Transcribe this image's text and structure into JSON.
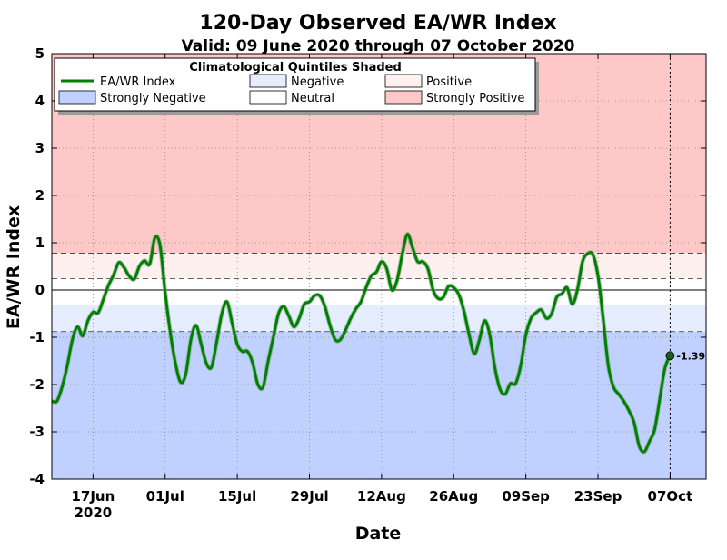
{
  "chart_data": {
    "type": "line",
    "title": "120-Day Observed EA/WR Index",
    "subtitle": "Valid: 09 June 2020 through 07 October 2020",
    "xlabel": "Date",
    "ylabel": "EA/WR Index",
    "ylim": [
      -4,
      5
    ],
    "yticks": [
      -4,
      -3,
      -2,
      -1,
      0,
      1,
      2,
      3,
      4,
      5
    ],
    "ytick_labels": [
      "-4",
      "-3",
      "-2",
      "-1",
      "0",
      "1",
      "2",
      "3",
      "4",
      "5"
    ],
    "xtick_dates": [
      "2020-06-17",
      "2020-07-01",
      "2020-07-15",
      "2020-07-29",
      "2020-08-12",
      "2020-08-26",
      "2020-09-09",
      "2020-09-23",
      "2020-10-07"
    ],
    "xtick_labels": [
      "17Jun",
      "01Jul",
      "15Jul",
      "29Jul",
      "12Aug",
      "26Aug",
      "09Sep",
      "23Sep",
      "07Oct"
    ],
    "xtick_sublabel": "2020",
    "grid": true,
    "quintile_thresholds": {
      "strong_negative_upper": -0.88,
      "negative_upper": -0.32,
      "positive_lower": 0.24,
      "strong_positive_lower": 0.78
    },
    "legend": {
      "title": "Climatological Quintiles Shaded",
      "placement": "top-left",
      "entries": [
        {
          "label": "EA/WR Index",
          "kind": "line",
          "color": "#008000"
        },
        {
          "label": "Negative",
          "kind": "patch",
          "color": "#e5edff"
        },
        {
          "label": "Positive",
          "kind": "patch",
          "color": "#fff0f0"
        },
        {
          "label": "Strongly Negative",
          "kind": "patch",
          "color": "#c0d1ff"
        },
        {
          "label": "Neutral",
          "kind": "patch",
          "color": "#ffffff"
        },
        {
          "label": "Strongly Positive",
          "kind": "patch",
          "color": "#ffc8c8"
        }
      ]
    },
    "colors": {
      "line": "#008000",
      "strong_negative": "#c0d1ff",
      "negative": "#e5edff",
      "neutral": "#ffffff",
      "positive": "#fff0f0",
      "strong_positive": "#ffc8c8"
    },
    "last_value_label": "-1.39",
    "series": [
      {
        "name": "EA/WR Index",
        "points": [
          [
            "2020-06-09",
            -2.35
          ],
          [
            "2020-06-10",
            -2.35
          ],
          [
            "2020-06-11",
            -2.05
          ],
          [
            "2020-06-12",
            -1.6
          ],
          [
            "2020-06-13",
            -1.05
          ],
          [
            "2020-06-14",
            -0.78
          ],
          [
            "2020-06-15",
            -0.97
          ],
          [
            "2020-06-16",
            -0.65
          ],
          [
            "2020-06-17",
            -0.47
          ],
          [
            "2020-06-18",
            -0.48
          ],
          [
            "2020-06-19",
            -0.2
          ],
          [
            "2020-06-20",
            0.1
          ],
          [
            "2020-06-21",
            0.32
          ],
          [
            "2020-06-22",
            0.58
          ],
          [
            "2020-06-23",
            0.48
          ],
          [
            "2020-06-24",
            0.3
          ],
          [
            "2020-06-25",
            0.23
          ],
          [
            "2020-06-26",
            0.5
          ],
          [
            "2020-06-27",
            0.62
          ],
          [
            "2020-06-28",
            0.55
          ],
          [
            "2020-06-29",
            1.1
          ],
          [
            "2020-06-30",
            0.95
          ],
          [
            "2020-07-01",
            -0.05
          ],
          [
            "2020-07-02",
            -0.9
          ],
          [
            "2020-07-03",
            -1.55
          ],
          [
            "2020-07-04",
            -1.95
          ],
          [
            "2020-07-05",
            -1.78
          ],
          [
            "2020-07-06",
            -1.05
          ],
          [
            "2020-07-07",
            -0.75
          ],
          [
            "2020-07-08",
            -1.15
          ],
          [
            "2020-07-09",
            -1.55
          ],
          [
            "2020-07-10",
            -1.63
          ],
          [
            "2020-07-11",
            -1.1
          ],
          [
            "2020-07-12",
            -0.5
          ],
          [
            "2020-07-13",
            -0.25
          ],
          [
            "2020-07-14",
            -0.7
          ],
          [
            "2020-07-15",
            -1.15
          ],
          [
            "2020-07-16",
            -1.3
          ],
          [
            "2020-07-17",
            -1.3
          ],
          [
            "2020-07-18",
            -1.55
          ],
          [
            "2020-07-19",
            -2.0
          ],
          [
            "2020-07-20",
            -2.05
          ],
          [
            "2020-07-21",
            -1.5
          ],
          [
            "2020-07-22",
            -1.0
          ],
          [
            "2020-07-23",
            -0.5
          ],
          [
            "2020-07-24",
            -0.35
          ],
          [
            "2020-07-25",
            -0.55
          ],
          [
            "2020-07-26",
            -0.78
          ],
          [
            "2020-07-27",
            -0.6
          ],
          [
            "2020-07-28",
            -0.3
          ],
          [
            "2020-07-29",
            -0.25
          ],
          [
            "2020-07-30",
            -0.12
          ],
          [
            "2020-07-31",
            -0.12
          ],
          [
            "2020-08-01",
            -0.35
          ],
          [
            "2020-08-02",
            -0.75
          ],
          [
            "2020-08-03",
            -1.05
          ],
          [
            "2020-08-04",
            -1.05
          ],
          [
            "2020-08-05",
            -0.85
          ],
          [
            "2020-08-06",
            -0.6
          ],
          [
            "2020-08-07",
            -0.4
          ],
          [
            "2020-08-08",
            -0.25
          ],
          [
            "2020-08-09",
            0.05
          ],
          [
            "2020-08-10",
            0.3
          ],
          [
            "2020-08-11",
            0.38
          ],
          [
            "2020-08-12",
            0.6
          ],
          [
            "2020-08-13",
            0.45
          ],
          [
            "2020-08-14",
            0.0
          ],
          [
            "2020-08-15",
            0.2
          ],
          [
            "2020-08-16",
            0.75
          ],
          [
            "2020-08-17",
            1.18
          ],
          [
            "2020-08-18",
            0.9
          ],
          [
            "2020-08-19",
            0.6
          ],
          [
            "2020-08-20",
            0.6
          ],
          [
            "2020-08-21",
            0.45
          ],
          [
            "2020-08-22",
            0.0
          ],
          [
            "2020-08-23",
            -0.18
          ],
          [
            "2020-08-24",
            -0.15
          ],
          [
            "2020-08-25",
            0.08
          ],
          [
            "2020-08-26",
            0.05
          ],
          [
            "2020-08-27",
            -0.1
          ],
          [
            "2020-08-28",
            -0.45
          ],
          [
            "2020-08-29",
            -0.95
          ],
          [
            "2020-08-30",
            -1.35
          ],
          [
            "2020-08-31",
            -1.05
          ],
          [
            "2020-09-01",
            -0.65
          ],
          [
            "2020-09-02",
            -0.95
          ],
          [
            "2020-09-03",
            -1.65
          ],
          [
            "2020-09-04",
            -2.1
          ],
          [
            "2020-09-05",
            -2.2
          ],
          [
            "2020-09-06",
            -1.98
          ],
          [
            "2020-09-07",
            -1.98
          ],
          [
            "2020-09-08",
            -1.6
          ],
          [
            "2020-09-09",
            -0.95
          ],
          [
            "2020-09-10",
            -0.6
          ],
          [
            "2020-09-11",
            -0.48
          ],
          [
            "2020-09-12",
            -0.42
          ],
          [
            "2020-09-13",
            -0.6
          ],
          [
            "2020-09-14",
            -0.5
          ],
          [
            "2020-09-15",
            -0.15
          ],
          [
            "2020-09-16",
            -0.08
          ],
          [
            "2020-09-17",
            0.05
          ],
          [
            "2020-09-18",
            -0.3
          ],
          [
            "2020-09-19",
            0.0
          ],
          [
            "2020-09-20",
            0.6
          ],
          [
            "2020-09-21",
            0.77
          ],
          [
            "2020-09-22",
            0.75
          ],
          [
            "2020-09-23",
            0.3
          ],
          [
            "2020-09-24",
            -0.6
          ],
          [
            "2020-09-25",
            -1.6
          ],
          [
            "2020-09-26",
            -2.05
          ],
          [
            "2020-09-27",
            -2.2
          ],
          [
            "2020-09-28",
            -2.35
          ],
          [
            "2020-09-29",
            -2.55
          ],
          [
            "2020-09-30",
            -2.8
          ],
          [
            "2020-10-01",
            -3.3
          ],
          [
            "2020-10-02",
            -3.42
          ],
          [
            "2020-10-03",
            -3.2
          ],
          [
            "2020-10-04",
            -2.95
          ],
          [
            "2020-10-05",
            -2.3
          ],
          [
            "2020-10-06",
            -1.65
          ],
          [
            "2020-10-07",
            -1.39
          ]
        ]
      }
    ]
  }
}
